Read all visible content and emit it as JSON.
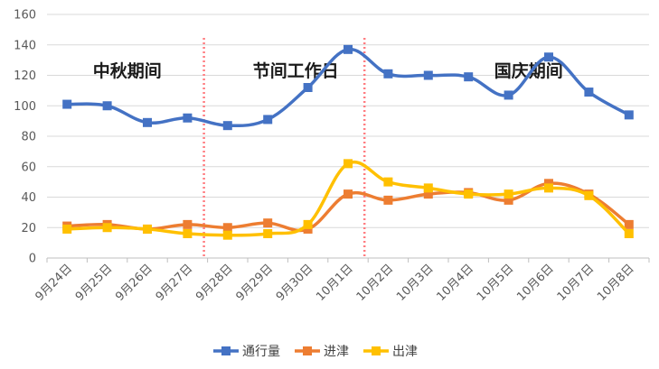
{
  "chart_data": {
    "type": "line",
    "categories": [
      "9月24日",
      "9月25日",
      "9月26日",
      "9月27日",
      "9月28日",
      "9月29日",
      "9月30日",
      "10月1日",
      "10月2日",
      "10月3日",
      "10月4日",
      "10月5日",
      "10月6日",
      "10月7日",
      "10月8日"
    ],
    "ylim": [
      0,
      160
    ],
    "yticks": [
      0,
      20,
      40,
      60,
      80,
      100,
      120,
      140,
      160
    ],
    "grid": true,
    "legend_position": "bottom",
    "series": [
      {
        "name": "通行量",
        "color": "#4472C4",
        "values": [
          101,
          100,
          89,
          92,
          87,
          91,
          112,
          137,
          121,
          120,
          119,
          107,
          132,
          109,
          94
        ]
      },
      {
        "name": "进津",
        "color": "#ED7D31",
        "values": [
          21,
          22,
          19,
          22,
          20,
          23,
          19,
          42,
          38,
          42,
          43,
          38,
          49,
          42,
          22
        ]
      },
      {
        "name": "出津",
        "color": "#FFC000",
        "values": [
          19,
          20,
          19,
          16,
          15,
          16,
          22,
          62,
          50,
          46,
          42,
          42,
          46,
          41,
          16
        ]
      }
    ],
    "annotations": [
      {
        "text": "中秋期间",
        "color": "#1a1a1a"
      },
      {
        "text": "节间工作日",
        "color": "#1a1a1a"
      },
      {
        "text": "国庆期间",
        "color": "#1a1a1a"
      }
    ],
    "dividers_color": "#FF7C80"
  }
}
